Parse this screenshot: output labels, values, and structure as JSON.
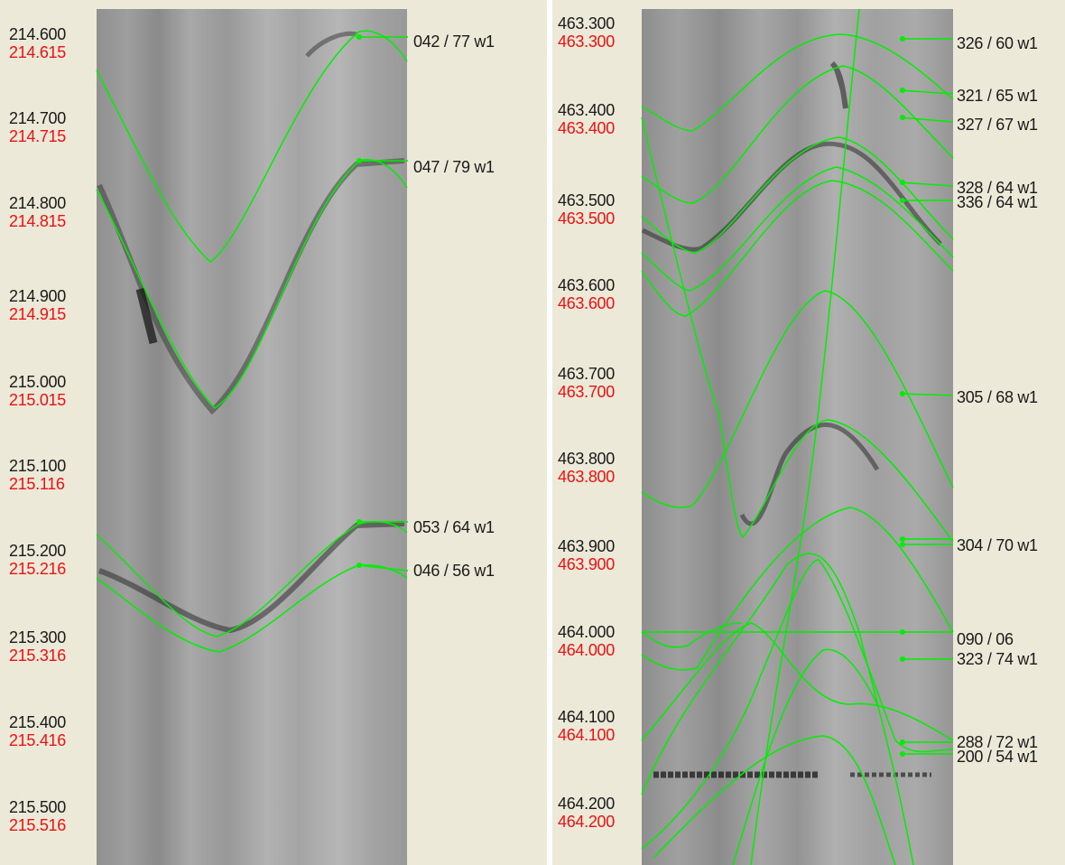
{
  "colors": {
    "pick_curve": "#00ee00",
    "measured_depth": "#1a1a1a",
    "true_depth": "#ee1111",
    "background": "#ece9d8"
  },
  "left_track": {
    "depths": [
      {
        "md": "214.600",
        "tvd": "214.615"
      },
      {
        "md": "214.700",
        "tvd": "214.715"
      },
      {
        "md": "214.800",
        "tvd": "214.815"
      },
      {
        "md": "214.900",
        "tvd": "214.915"
      },
      {
        "md": "215.000",
        "tvd": "215.015"
      },
      {
        "md": "215.100",
        "tvd": "215.116"
      },
      {
        "md": "215.200",
        "tvd": "215.216"
      },
      {
        "md": "215.300",
        "tvd": "215.316"
      },
      {
        "md": "215.400",
        "tvd": "215.416"
      },
      {
        "md": "215.500",
        "tvd": "215.516"
      }
    ],
    "picks": [
      "042 / 77 w1",
      "047 / 79 w1",
      "053 / 64 w1",
      "046 / 56 w1"
    ]
  },
  "right_track": {
    "depths": [
      {
        "md": "463.300",
        "tvd": "463.300"
      },
      {
        "md": "463.400",
        "tvd": "463.400"
      },
      {
        "md": "463.500",
        "tvd": "463.500"
      },
      {
        "md": "463.600",
        "tvd": "463.600"
      },
      {
        "md": "463.700",
        "tvd": "463.700"
      },
      {
        "md": "463.800",
        "tvd": "463.800"
      },
      {
        "md": "463.900",
        "tvd": "463.900"
      },
      {
        "md": "464.000",
        "tvd": "464.000"
      },
      {
        "md": "464.100",
        "tvd": "464.100"
      },
      {
        "md": "464.200",
        "tvd": "464.200"
      }
    ],
    "picks": [
      "326 / 60 w1",
      "321 / 65 w1",
      "327 / 67 w1",
      "328 / 64 w1",
      "336 / 64 w1",
      "305 / 68 w1",
      "304 / 70 w1",
      "090 / 06",
      "323 / 74 w1",
      "288 / 72 w1",
      "200 / 54 w1"
    ]
  }
}
